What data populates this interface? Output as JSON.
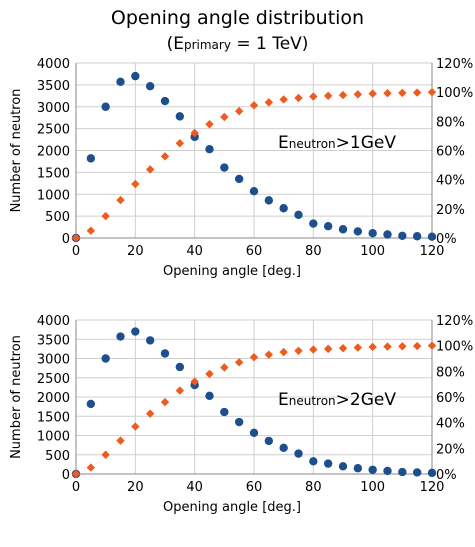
{
  "title": "Opening angle distribution",
  "subtitle": {
    "prefix": "(E",
    "subscript": "primary",
    "suffix": " = 1 TeV)"
  },
  "colors": {
    "count_series": "#1c4f8c",
    "cumulative_series": "#f05a1e",
    "grid": "#cfcfcf",
    "axis": "#888888"
  },
  "chart_data": [
    {
      "type": "scatter",
      "xlabel": "Opening angle [deg.]",
      "ylabel": "Number of neutron",
      "xlim": [
        0,
        120
      ],
      "ylim": [
        0,
        4000
      ],
      "y2lim": [
        0,
        120
      ],
      "x_ticks": [
        "0",
        "20",
        "40",
        "60",
        "80",
        "100",
        "120"
      ],
      "y_ticks": [
        "0",
        "500",
        "1000",
        "1500",
        "2000",
        "2500",
        "3000",
        "3500",
        "4000"
      ],
      "y2_ticks": [
        "0%",
        "20%",
        "40%",
        "60%",
        "80%",
        "100%",
        "120%"
      ],
      "grid": true,
      "annotation": {
        "prefix": "E",
        "subscript": "neutron",
        "suffix": ">1GeV"
      },
      "x": [
        0,
        5,
        10,
        15,
        20,
        25,
        30,
        35,
        40,
        45,
        50,
        55,
        60,
        65,
        70,
        75,
        80,
        85,
        90,
        95,
        100,
        105,
        110,
        115,
        120
      ],
      "series": [
        {
          "axis": "left",
          "marker": "circle",
          "values": [
            0,
            1820,
            3000,
            3570,
            3700,
            3470,
            3130,
            2780,
            2310,
            2030,
            1610,
            1350,
            1070,
            860,
            680,
            530,
            330,
            270,
            200,
            150,
            110,
            80,
            50,
            40,
            30
          ]
        },
        {
          "axis": "right",
          "marker": "diamond",
          "values": [
            0,
            5,
            15,
            26,
            37,
            47,
            56,
            65,
            72,
            78,
            83,
            87,
            91,
            93,
            95,
            96,
            97,
            97.5,
            98,
            98.5,
            99,
            99.3,
            99.5,
            99.7,
            100
          ]
        }
      ]
    },
    {
      "type": "scatter",
      "xlabel": "Opening angle [deg.]",
      "ylabel": "Number of neutron",
      "xlim": [
        0,
        120
      ],
      "ylim": [
        0,
        4000
      ],
      "y2lim": [
        0,
        120
      ],
      "x_ticks": [
        "0",
        "20",
        "40",
        "60",
        "80",
        "100",
        "120"
      ],
      "y_ticks": [
        "0",
        "500",
        "1000",
        "1500",
        "2000",
        "2500",
        "3000",
        "3500",
        "4000"
      ],
      "y2_ticks": [
        "0%",
        "20%",
        "40%",
        "60%",
        "80%",
        "100%",
        "120%"
      ],
      "grid": true,
      "annotation": {
        "prefix": "E",
        "subscript": "neutron",
        "suffix": ">2GeV"
      },
      "x": [
        0,
        5,
        10,
        15,
        20,
        25,
        30,
        35,
        40,
        45,
        50,
        55,
        60,
        65,
        70,
        75,
        80,
        85,
        90,
        95,
        100,
        105,
        110,
        115,
        120
      ],
      "series": [
        {
          "axis": "left",
          "marker": "circle",
          "values": [
            0,
            1820,
            3000,
            3570,
            3700,
            3470,
            3130,
            2780,
            2310,
            2030,
            1610,
            1350,
            1070,
            860,
            680,
            530,
            330,
            270,
            200,
            150,
            110,
            80,
            50,
            40,
            30
          ]
        },
        {
          "axis": "right",
          "marker": "diamond",
          "values": [
            0,
            5,
            15,
            26,
            37,
            47,
            56,
            65,
            72,
            78,
            83,
            87,
            91,
            93,
            95,
            96,
            97,
            97.5,
            98,
            98.5,
            99,
            99.3,
            99.5,
            99.7,
            100
          ]
        }
      ]
    }
  ]
}
